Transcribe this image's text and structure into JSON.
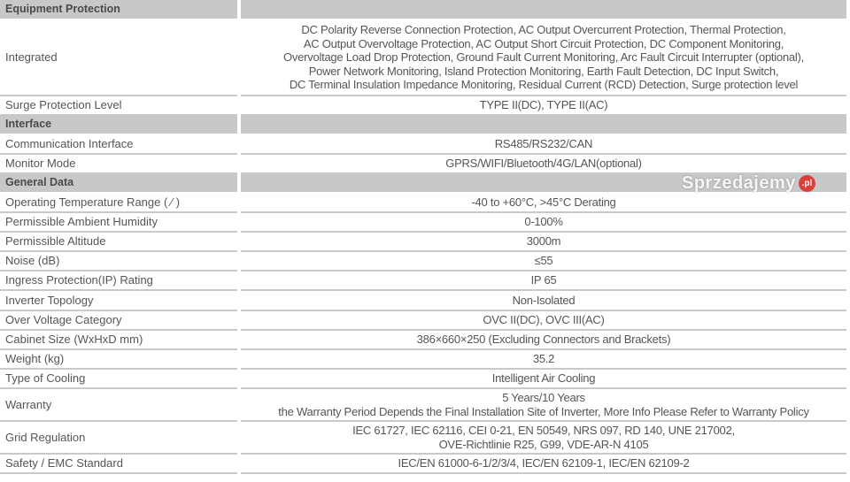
{
  "rows": [
    {
      "type": "section",
      "label": "Equipment Protection",
      "value": ""
    },
    {
      "type": "row",
      "label": "Integrated",
      "value": "DC Polarity Reverse Connection Protection, AC Output Overcurrent Protection, Thermal Protection,\nAC Output Overvoltage Protection, AC Output Short Circuit Protection, DC Component Monitoring,\nOvervoltage Load Drop Protection, Ground Fault Current Monitoring, Arc Fault Circuit Interrupter (optional),\nPower Network Monitoring, Island Protection Monitoring, Earth Fault Detection, DC Input Switch,\nDC Terminal Insulation Impedance Monitoring, Residual Current (RCD) Detection, Surge protection level"
    },
    {
      "type": "row",
      "label": "Surge Protection Level",
      "value": "TYPE II(DC), TYPE II(AC)"
    },
    {
      "type": "section",
      "label": "Interface",
      "value": ""
    },
    {
      "type": "row",
      "label": "Communication Interface",
      "value": "RS485/RS232/CAN"
    },
    {
      "type": "row",
      "label": "Monitor Mode",
      "value": "GPRS/WIFI/Bluetooth/4G/LAN(optional)"
    },
    {
      "type": "section",
      "label": "General Data",
      "value": ""
    },
    {
      "type": "row",
      "label": "Operating Temperature Range ( ⁄ )",
      "value": "-40 to +60°C, >45°C Derating"
    },
    {
      "type": "row",
      "label": "Permissible Ambient Humidity",
      "value": "0-100%"
    },
    {
      "type": "row",
      "label": "Permissible Altitude",
      "value": "3000m"
    },
    {
      "type": "row",
      "label": "Noise (dB)",
      "value": "≤55"
    },
    {
      "type": "row",
      "label": "Ingress Protection(IP) Rating",
      "value": "IP 65"
    },
    {
      "type": "row",
      "label": "Inverter Topology",
      "value": "Non-Isolated"
    },
    {
      "type": "row",
      "label": "Over Voltage Category",
      "value": "OVC II(DC), OVC III(AC)"
    },
    {
      "type": "row",
      "label": "Cabinet Size (WxHxD mm)",
      "value": "386×660×250 (Excluding Connectors and Brackets)"
    },
    {
      "type": "row",
      "label": "Weight (kg)",
      "value": "35.2"
    },
    {
      "type": "row",
      "label": "Type of Cooling",
      "value": "Intelligent Air Cooling"
    },
    {
      "type": "row",
      "label": "Warranty",
      "value": "5 Years/10 Years\nthe Warranty Period Depends the Final Installation Site of Inverter, More Info Please Refer to Warranty Policy"
    },
    {
      "type": "row",
      "label": "Grid Regulation",
      "value": "IEC 61727, IEC 62116, CEI 0-21, EN 50549, NRS 097, RD 140, UNE 217002,\nOVE-Richtlinie R25, G99, VDE-AR-N 4105"
    },
    {
      "type": "row",
      "label": "Safety / EMC Standard",
      "value": "IEC/EN 61000-6-1/2/3/4, IEC/EN 62109-1, IEC/EN 62109-2"
    }
  ],
  "watermark": {
    "text": "Sprzedajemy",
    "badge": ".pl",
    "badge_color": "#d9403a"
  }
}
